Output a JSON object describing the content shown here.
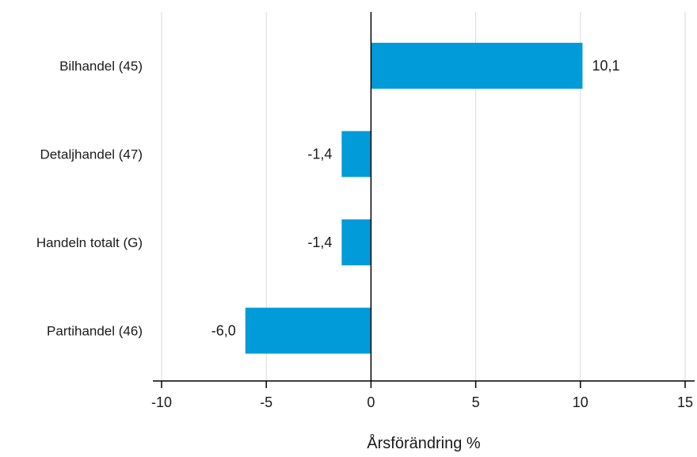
{
  "chart_data": {
    "type": "bar",
    "orientation": "horizontal",
    "categories": [
      "Bilhandel (45)",
      "Detaljhandel (47)",
      "Handeln totalt (G)",
      "Partihandel (46)"
    ],
    "values": [
      10.1,
      -1.4,
      -1.4,
      -6.0
    ],
    "value_labels": [
      "10,1",
      "-1,4",
      "-1,4",
      "-6,0"
    ],
    "xlabel": "Årsförändring %",
    "xlim": [
      -10,
      15
    ],
    "xticks": [
      -10,
      -5,
      0,
      5,
      10,
      15
    ],
    "xtick_labels": [
      "-10",
      "-5",
      "0",
      "5",
      "10",
      "15"
    ],
    "grid": "vertical",
    "bar_color": "#009bd8"
  }
}
